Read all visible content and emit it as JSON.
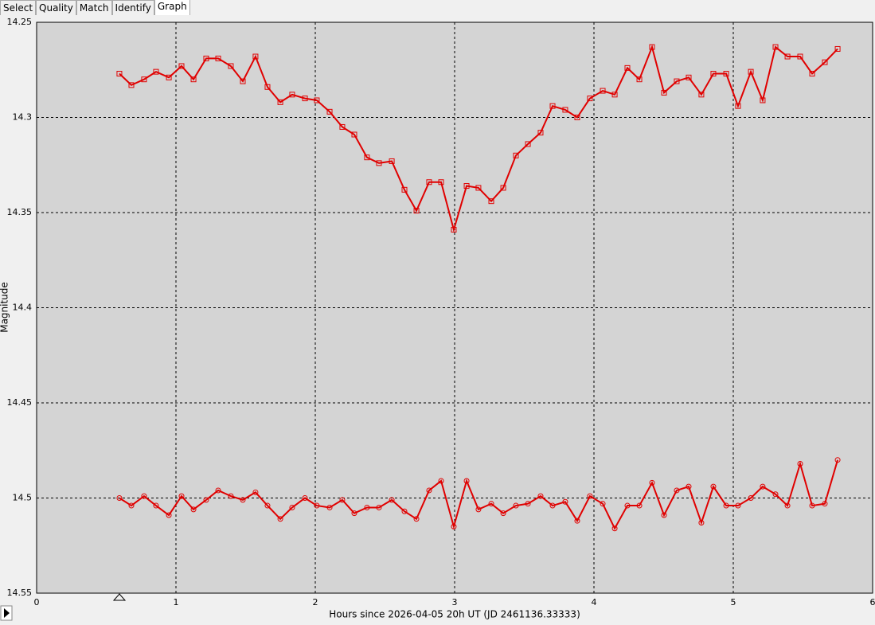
{
  "tabs": [
    "Select",
    "Quality",
    "Match",
    "Identify",
    "Graph"
  ],
  "active_tab": 4,
  "chart_data": {
    "type": "line",
    "xlabel": "Hours since 2026-04-05 20h UT (JD 2461136.33333)",
    "ylabel": "Magnitude",
    "x": [
      0.594,
      0.68,
      0.771,
      0.857,
      0.949,
      1.04,
      1.126,
      1.217,
      1.303,
      1.394,
      1.48,
      1.571,
      1.657,
      1.749,
      1.834,
      1.926,
      2.011,
      2.103,
      2.194,
      2.28,
      2.371,
      2.457,
      2.549,
      2.64,
      2.726,
      2.817,
      2.903,
      2.994,
      3.086,
      3.171,
      3.263,
      3.349,
      3.44,
      3.526,
      3.617,
      3.703,
      3.794,
      3.88,
      3.971,
      4.063,
      4.149,
      4.24,
      4.326,
      4.417,
      4.503,
      4.594,
      4.68,
      4.771,
      4.857,
      4.949,
      5.034,
      5.126,
      5.211,
      5.303,
      5.389,
      5.48,
      5.566,
      5.657,
      5.749
    ],
    "series": [
      {
        "color": "#e00000",
        "marker": "square",
        "values": [
          14.277,
          14.283,
          14.28,
          14.276,
          14.279,
          14.273,
          14.28,
          14.269,
          14.269,
          14.273,
          14.281,
          14.268,
          14.284,
          14.292,
          14.288,
          14.29,
          14.291,
          14.297,
          14.305,
          14.309,
          14.321,
          14.324,
          14.323,
          14.338,
          14.349,
          14.334,
          14.334,
          14.359,
          14.336,
          14.337,
          14.344,
          14.337,
          14.32,
          14.314,
          14.308,
          14.294,
          14.296,
          14.3,
          14.29,
          14.286,
          14.288,
          14.274,
          14.28,
          14.263,
          14.287,
          14.281,
          14.279,
          14.288,
          14.277,
          14.277,
          14.294,
          14.276,
          14.291,
          14.263,
          14.268,
          14.268,
          14.277,
          14.271,
          14.264
        ]
      },
      {
        "color": "#e00000",
        "marker": "circle",
        "values": [
          14.5,
          14.504,
          14.499,
          14.504,
          14.509,
          14.499,
          14.506,
          14.501,
          14.496,
          14.499,
          14.501,
          14.497,
          14.504,
          14.511,
          14.505,
          14.5,
          14.504,
          14.505,
          14.501,
          14.508,
          14.505,
          14.505,
          14.501,
          14.507,
          14.511,
          14.496,
          14.491,
          14.515,
          14.491,
          14.506,
          14.503,
          14.508,
          14.504,
          14.503,
          14.499,
          14.504,
          14.502,
          14.512,
          14.499,
          14.503,
          14.516,
          14.504,
          14.504,
          14.492,
          14.509,
          14.496,
          14.494,
          14.513,
          14.494,
          14.504,
          14.504,
          14.5,
          14.494,
          14.498,
          14.504,
          14.482,
          14.504,
          14.503,
          14.48
        ]
      }
    ],
    "xlim": [
      0,
      6
    ],
    "xticks": [
      0,
      1,
      2,
      3,
      4,
      5,
      6
    ],
    "ylim": [
      14.25,
      14.55
    ],
    "yticks": [
      14.25,
      14.3,
      14.35,
      14.4,
      14.45,
      14.5,
      14.55
    ],
    "y_inverted": true,
    "grid": true
  }
}
